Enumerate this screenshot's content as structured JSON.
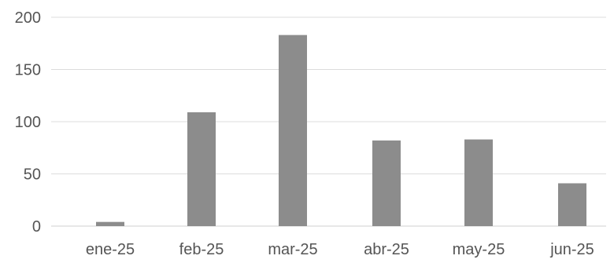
{
  "chart_data": {
    "type": "bar",
    "categories": [
      "ene-25",
      "feb-25",
      "mar-25",
      "abr-25",
      "may-25",
      "jun-25"
    ],
    "values": [
      4,
      109,
      183,
      82,
      83,
      41
    ],
    "ylim": [
      0,
      200
    ],
    "yticks": [
      "0",
      "50",
      "100",
      "150",
      "200"
    ],
    "grid": true,
    "colors": {
      "bar": "#8c8c8c",
      "grid": "#dcdcdc",
      "text": "#555555"
    }
  }
}
